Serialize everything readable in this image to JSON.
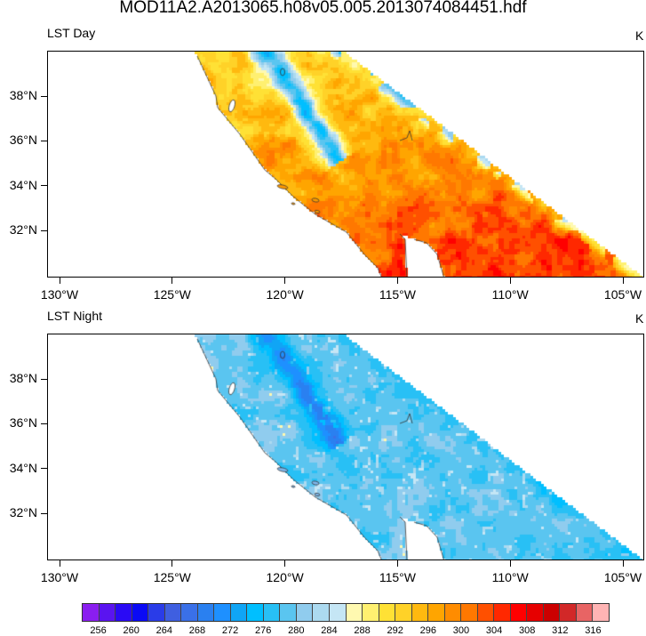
{
  "chart_data": {
    "type": "heatmap",
    "title": "MOD11A2.A2013065.h08v05.005.2013074084451.hdf",
    "panels": [
      {
        "name": "day",
        "title": "LST Day",
        "units": "K"
      },
      {
        "name": "night",
        "title": "LST Night",
        "units": "K"
      }
    ],
    "x_ticks": [
      "130°W",
      "125°W",
      "120°W",
      "115°W",
      "110°W",
      "105°W"
    ],
    "x_tick_values": [
      -130,
      -125,
      -120,
      -115,
      -110,
      -105
    ],
    "y_ticks": [
      "38°N",
      "36°N",
      "34°N",
      "32°N"
    ],
    "y_tick_values": [
      38,
      36,
      34,
      32
    ],
    "xlim": [
      -130.6,
      -104.1
    ],
    "ylim": [
      30.0,
      40.0
    ],
    "colorbar": {
      "levels_start": 256,
      "levels_end": 316,
      "level_step": 2,
      "labels": [
        "256",
        "260",
        "264",
        "268",
        "272",
        "276",
        "280",
        "284",
        "288",
        "292",
        "296",
        "300",
        "304",
        "308",
        "312",
        "316"
      ],
      "colors": [
        "#8a1ef0",
        "#5a14f0",
        "#2a0af5",
        "#0a0af5",
        "#2a3ce8",
        "#3f5fe0",
        "#3a70e8",
        "#2a80f0",
        "#1e90ff",
        "#10a5f5",
        "#00bfff",
        "#28c0f5",
        "#5ac5f0",
        "#90ccee",
        "#acdaf0",
        "#c5e6f5",
        "#fff9b0",
        "#fff070",
        "#ffe135",
        "#ffd228",
        "#ffb90f",
        "#ffa500",
        "#ff8c00",
        "#ff7800",
        "#ff5000",
        "#ff2800",
        "#ff0000",
        "#e60000",
        "#cc0000",
        "#d22828",
        "#e86464",
        "#ffb4b4"
      ]
    }
  }
}
